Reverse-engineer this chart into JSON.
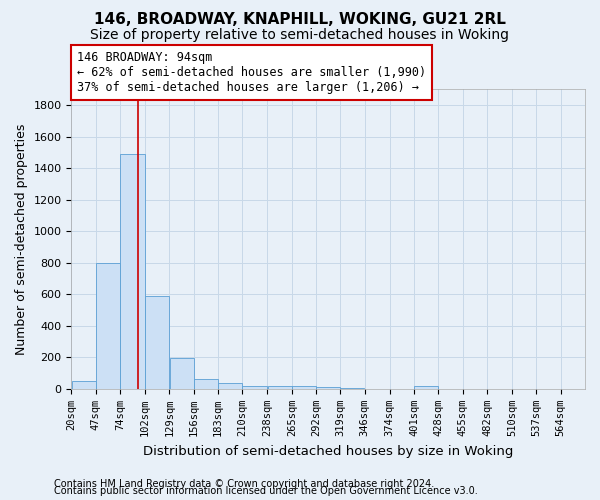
{
  "title": "146, BROADWAY, KNAPHILL, WOKING, GU21 2RL",
  "subtitle": "Size of property relative to semi-detached houses in Woking",
  "xlabel": "Distribution of semi-detached houses by size in Woking",
  "ylabel": "Number of semi-detached properties",
  "footer1": "Contains HM Land Registry data © Crown copyright and database right 2024.",
  "footer2": "Contains public sector information licensed under the Open Government Licence v3.0.",
  "annotation_title": "146 BROADWAY: 94sqm",
  "annotation_line1": "← 62% of semi-detached houses are smaller (1,990)",
  "annotation_line2": "37% of semi-detached houses are larger (1,206) →",
  "property_size": 94,
  "bar_left_edges": [
    20,
    47,
    74,
    102,
    129,
    156,
    183,
    210,
    238,
    265,
    292,
    319,
    346,
    374,
    401,
    428,
    455,
    482,
    510,
    537
  ],
  "bar_widths": [
    27,
    27,
    28,
    27,
    27,
    27,
    27,
    28,
    27,
    27,
    27,
    27,
    28,
    27,
    27,
    27,
    27,
    28,
    27,
    27
  ],
  "bar_heights": [
    50,
    800,
    1490,
    590,
    195,
    60,
    38,
    18,
    18,
    20,
    15,
    8,
    0,
    0,
    18,
    0,
    0,
    0,
    0,
    0
  ],
  "tick_labels": [
    "20sqm",
    "47sqm",
    "74sqm",
    "102sqm",
    "129sqm",
    "156sqm",
    "183sqm",
    "210sqm",
    "238sqm",
    "265sqm",
    "292sqm",
    "319sqm",
    "346sqm",
    "374sqm",
    "401sqm",
    "428sqm",
    "455sqm",
    "482sqm",
    "510sqm",
    "537sqm",
    "564sqm"
  ],
  "ylim": [
    0,
    1900
  ],
  "yticks": [
    0,
    200,
    400,
    600,
    800,
    1000,
    1200,
    1400,
    1600,
    1800
  ],
  "bar_color": "#cce0f5",
  "bar_edge_color": "#5a9fd4",
  "red_line_color": "#cc0000",
  "annotation_box_color": "#ffffff",
  "annotation_box_edge": "#cc0000",
  "grid_color": "#c8d8e8",
  "background_color": "#e8f0f8",
  "title_fontsize": 11,
  "subtitle_fontsize": 10,
  "axis_label_fontsize": 9,
  "annotation_fontsize": 8.5,
  "tick_fontsize": 7.5,
  "footer_fontsize": 7
}
